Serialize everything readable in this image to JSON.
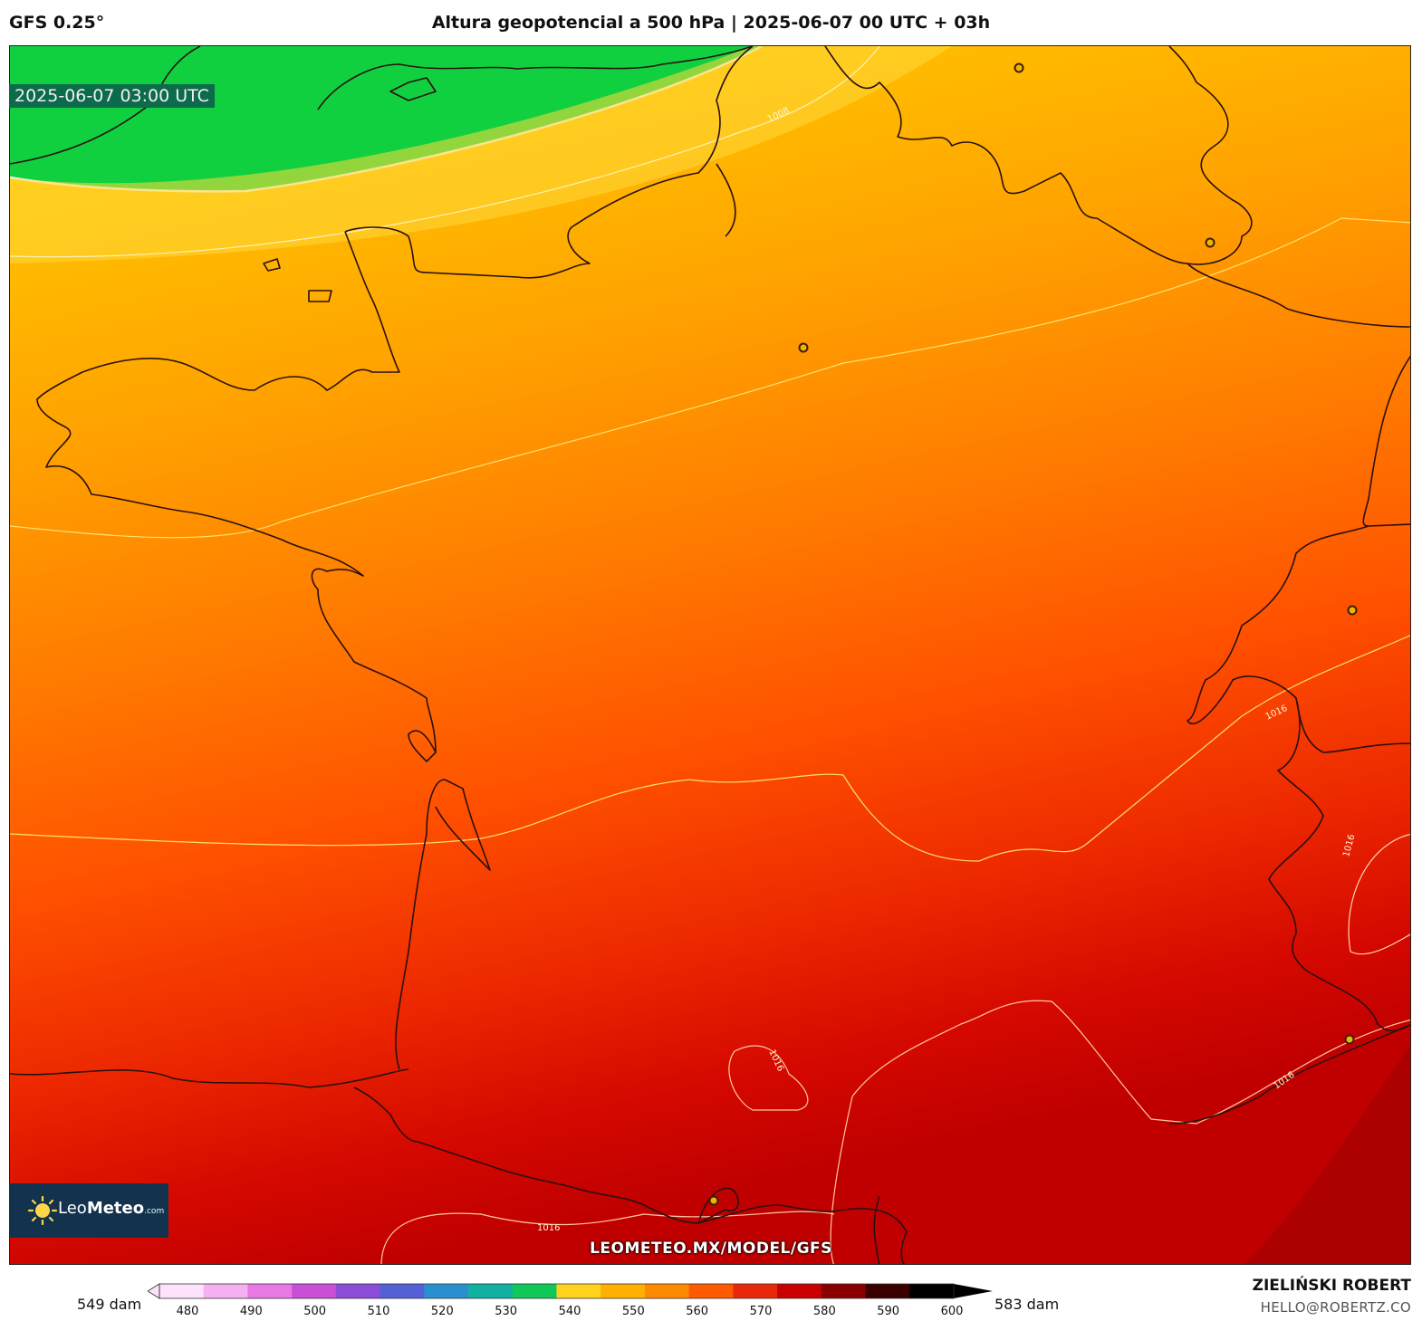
{
  "header": {
    "model": "GFS 0.25°",
    "title": "Altura geopotencial a 500 hPa | 2025-06-07 00 UTC + 03h"
  },
  "map": {
    "valid_time": "2025-06-07 03:00 UTC",
    "watermark": "LEOMETEO.MX/MODEL/GFS",
    "isobar_labels": [
      "1008",
      "1016",
      "1016",
      "1016",
      "1016",
      "1016"
    ],
    "city_markers": 7
  },
  "logo": {
    "name_light": "Leo",
    "name_bold": "Meteo",
    "suffix": ".com"
  },
  "colorbar": {
    "min_label": "549 dam",
    "max_label": "583 dam",
    "ticks": [
      "480",
      "490",
      "500",
      "510",
      "520",
      "530",
      "540",
      "550",
      "560",
      "570",
      "580",
      "590",
      "600"
    ],
    "colors": [
      "#fde2fb",
      "#f4b0f0",
      "#e878e4",
      "#c94fd6",
      "#8b4cd8",
      "#5560d6",
      "#2a8fcf",
      "#12b0a0",
      "#10c858",
      "#ffd21c",
      "#ffb000",
      "#ff8a00",
      "#ff5a00",
      "#e8280a",
      "#c80000",
      "#8a0000",
      "#3a0000",
      "#000000"
    ]
  },
  "credits": {
    "author": "ZIELIŃSKI ROBERT",
    "email": "HELLO@ROBERTZ.CO"
  }
}
